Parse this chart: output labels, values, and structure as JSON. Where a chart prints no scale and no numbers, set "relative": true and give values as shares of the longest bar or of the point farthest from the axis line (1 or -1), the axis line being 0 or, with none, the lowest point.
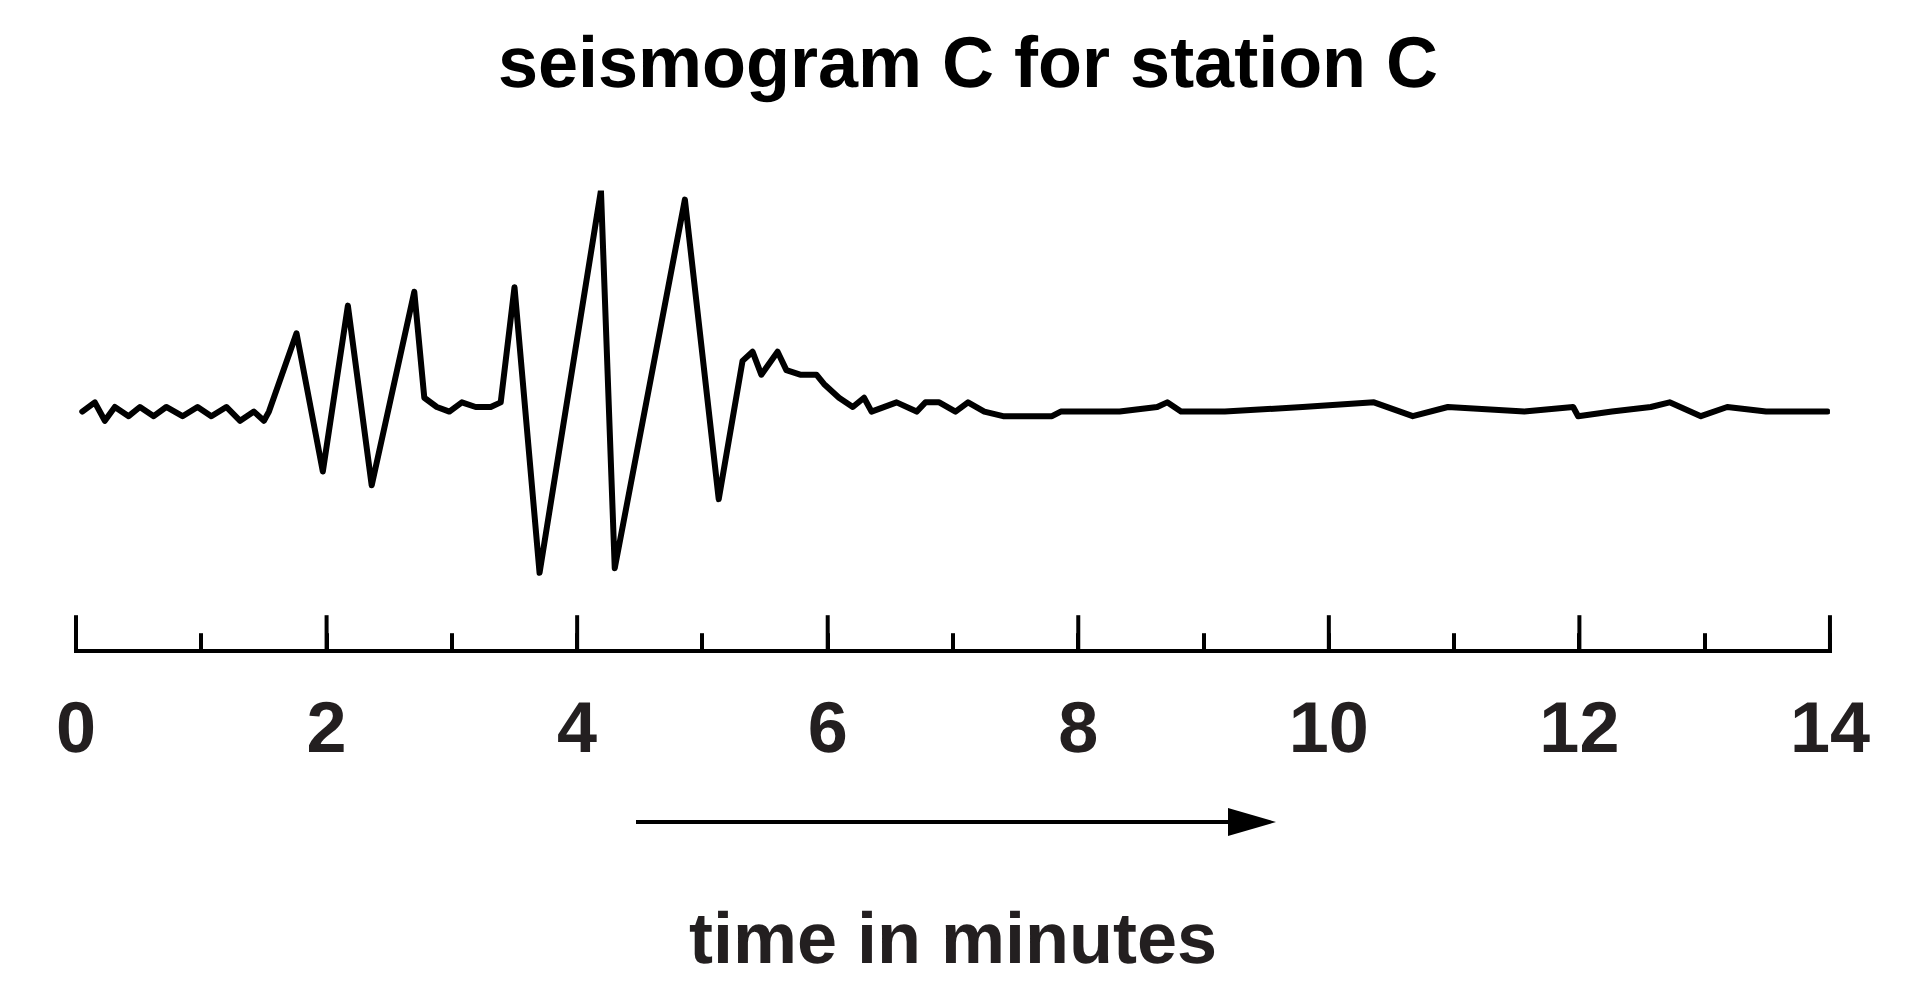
{
  "chart_data": {
    "type": "line",
    "title": "seismogram C for station C",
    "xlabel": "time in minutes",
    "relative": true,
    "color": "#000000",
    "marker": "none",
    "legend": false,
    "grid": false,
    "tick_labels": "x",
    "xlim": [
      0,
      14
    ],
    "xticks": [
      0,
      {
        "value": 1,
        "label": null
      },
      2,
      {
        "value": 3,
        "label": null
      },
      4,
      {
        "value": 5,
        "label": null
      },
      6,
      {
        "value": 7,
        "label": null
      },
      8,
      {
        "value": 9,
        "label": null
      },
      10,
      {
        "value": 11,
        "label": null
      },
      12,
      {
        "value": 13,
        "label": null
      },
      14
    ],
    "x": [
      0.05,
      0.15,
      0.23,
      0.31,
      0.42,
      0.51,
      0.62,
      0.72,
      0.85,
      0.97,
      1.08,
      1.2,
      1.31,
      1.42,
      1.5,
      1.54,
      1.76,
      1.97,
      2.17,
      2.36,
      2.7,
      2.78,
      2.88,
      2.98,
      3.08,
      3.19,
      3.31,
      3.39,
      3.5,
      3.7,
      4.19,
      4.3,
      4.86,
      5.13,
      5.32,
      5.4,
      5.47,
      5.6,
      5.67,
      5.78,
      5.91,
      5.97,
      6.09,
      6.2,
      6.29,
      6.35,
      6.55,
      6.71,
      6.78,
      6.89,
      7.02,
      7.12,
      7.25,
      7.4,
      7.79,
      7.86,
      8.33,
      8.63,
      8.71,
      8.82,
      9.17,
      9.79,
      10.36,
      10.67,
      10.95,
      11.56,
      11.95,
      11.99,
      12.26,
      12.57,
      12.72,
      12.97,
      13.18,
      13.49,
      13.98
    ],
    "values": [
      0.52,
      0.54,
      0.5,
      0.53,
      0.51,
      0.53,
      0.51,
      0.53,
      0.51,
      0.53,
      0.51,
      0.53,
      0.5,
      0.52,
      0.5,
      0.52,
      0.69,
      0.39,
      0.75,
      0.36,
      0.78,
      0.55,
      0.53,
      0.52,
      0.54,
      0.53,
      0.53,
      0.54,
      0.79,
      0.17,
      1,
      0.18,
      0.98,
      0.33,
      0.63,
      0.65,
      0.6,
      0.65,
      0.61,
      0.6,
      0.6,
      0.58,
      0.55,
      0.53,
      0.55,
      0.52,
      0.54,
      0.52,
      0.54,
      0.54,
      0.52,
      0.54,
      0.52,
      0.51,
      0.51,
      0.52,
      0.52,
      0.53,
      0.54,
      0.52,
      0.52,
      0.53,
      0.54,
      0.51,
      0.53,
      0.52,
      0.53,
      0.51,
      0.52,
      0.53,
      0.54,
      0.51,
      0.53,
      0.52,
      0.52
    ]
  }
}
